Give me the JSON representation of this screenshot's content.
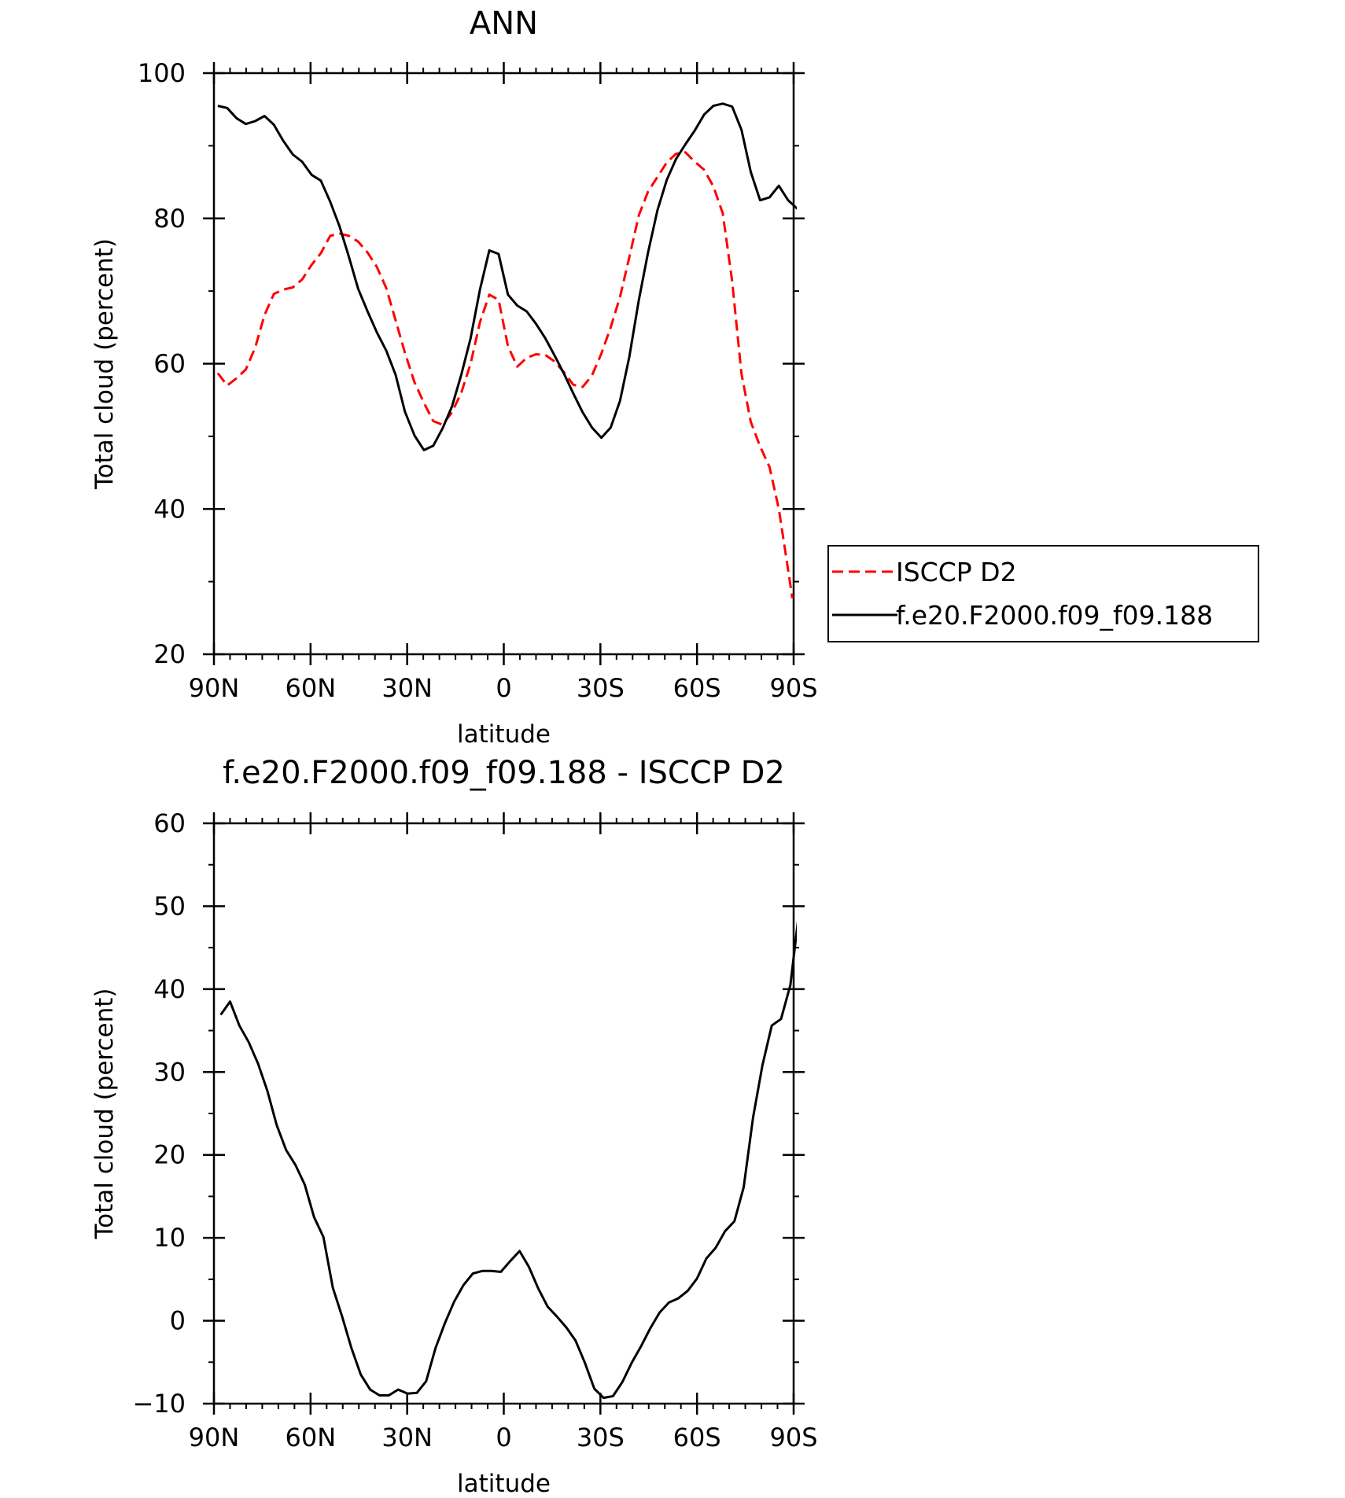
{
  "chart_data": [
    {
      "type": "line",
      "title": "ANN",
      "xlabel": "latitude",
      "ylabel": "Total cloud (percent)",
      "xlim": [
        90,
        -90
      ],
      "ylim": [
        20,
        100
      ],
      "x_ticks": [
        {
          "value": 90,
          "label": "90N"
        },
        {
          "value": 60,
          "label": "60N"
        },
        {
          "value": 30,
          "label": "30N"
        },
        {
          "value": 0,
          "label": "0"
        },
        {
          "value": -30,
          "label": "30S"
        },
        {
          "value": -60,
          "label": "60S"
        },
        {
          "value": -90,
          "label": "90S"
        }
      ],
      "y_ticks": [
        {
          "value": 20,
          "label": "20"
        },
        {
          "value": 40,
          "label": "40"
        },
        {
          "value": 60,
          "label": "60"
        },
        {
          "value": 80,
          "label": "80"
        },
        {
          "value": 100,
          "label": "100"
        }
      ],
      "legend_position": "outside-right",
      "series": [
        {
          "name": "ISCCP D2",
          "color": "#ff0000",
          "style": "dashed",
          "points": [
            [
              88.8,
              58.7
            ],
            [
              85.9,
              57.0
            ],
            [
              83.0,
              58.0
            ],
            [
              80.1,
              59.2
            ],
            [
              77.2,
              62.2
            ],
            [
              74.3,
              66.7
            ],
            [
              71.4,
              69.6
            ],
            [
              68.5,
              70.2
            ],
            [
              65.5,
              70.5
            ],
            [
              62.6,
              71.6
            ],
            [
              59.7,
              73.6
            ],
            [
              56.8,
              75.2
            ],
            [
              53.9,
              77.6
            ],
            [
              51.0,
              77.9
            ],
            [
              48.1,
              77.6
            ],
            [
              45.2,
              76.8
            ],
            [
              42.3,
              75.3
            ],
            [
              39.4,
              73.3
            ],
            [
              36.5,
              70.4
            ],
            [
              33.6,
              66.0
            ],
            [
              30.7,
              61.5
            ],
            [
              27.7,
              57.4
            ],
            [
              24.8,
              54.6
            ],
            [
              21.9,
              52.1
            ],
            [
              19.0,
              51.6
            ],
            [
              16.1,
              53.3
            ],
            [
              13.2,
              56.0
            ],
            [
              10.3,
              60.0
            ],
            [
              7.4,
              65.7
            ],
            [
              4.5,
              69.5
            ],
            [
              1.6,
              68.8
            ],
            [
              -1.3,
              62.4
            ],
            [
              -4.2,
              59.6
            ],
            [
              -7.1,
              60.8
            ],
            [
              -10.0,
              61.3
            ],
            [
              -12.9,
              61.2
            ],
            [
              -15.8,
              60.3
            ],
            [
              -18.7,
              58.8
            ],
            [
              -21.6,
              57.1
            ],
            [
              -24.5,
              56.8
            ],
            [
              -27.4,
              58.4
            ],
            [
              -30.3,
              61.4
            ],
            [
              -33.2,
              65.0
            ],
            [
              -36.1,
              69.2
            ],
            [
              -39.0,
              74.7
            ],
            [
              -41.9,
              80.4
            ],
            [
              -44.8,
              83.7
            ],
            [
              -47.7,
              85.7
            ],
            [
              -50.6,
              87.7
            ],
            [
              -53.5,
              88.9
            ],
            [
              -56.4,
              89.1
            ],
            [
              -59.3,
              87.8
            ],
            [
              -62.2,
              86.7
            ],
            [
              -65.1,
              84.4
            ],
            [
              -68.0,
              80.7
            ],
            [
              -70.9,
              71.4
            ],
            [
              -73.8,
              58.6
            ],
            [
              -76.7,
              52.0
            ],
            [
              -79.6,
              48.6
            ],
            [
              -82.5,
              45.8
            ],
            [
              -85.4,
              40.0
            ],
            [
              -88.3,
              31.6
            ],
            [
              -89.6,
              27.7
            ]
          ]
        },
        {
          "name": "f.e20.F2000.f09_f09.188",
          "color": "#000000",
          "style": "solid",
          "points": [
            [
              88.8,
              95.5
            ],
            [
              85.9,
              95.2
            ],
            [
              83.0,
              93.8
            ],
            [
              80.1,
              93.0
            ],
            [
              77.2,
              93.4
            ],
            [
              74.3,
              94.1
            ],
            [
              71.4,
              92.9
            ],
            [
              68.5,
              90.7
            ],
            [
              65.5,
              88.8
            ],
            [
              62.6,
              87.8
            ],
            [
              59.7,
              86.0
            ],
            [
              56.8,
              85.2
            ],
            [
              53.9,
              82.3
            ],
            [
              51.0,
              78.9
            ],
            [
              48.1,
              74.7
            ],
            [
              45.2,
              70.3
            ],
            [
              42.3,
              67.2
            ],
            [
              39.4,
              64.3
            ],
            [
              36.5,
              61.8
            ],
            [
              33.6,
              58.5
            ],
            [
              30.7,
              53.4
            ],
            [
              27.7,
              50.1
            ],
            [
              24.8,
              48.1
            ],
            [
              21.9,
              48.7
            ],
            [
              19.0,
              51.1
            ],
            [
              16.1,
              54.1
            ],
            [
              13.2,
              58.5
            ],
            [
              10.3,
              63.5
            ],
            [
              7.4,
              70.2
            ],
            [
              4.5,
              75.6
            ],
            [
              1.6,
              75.1
            ],
            [
              -1.3,
              69.5
            ],
            [
              -4.2,
              68.0
            ],
            [
              -7.1,
              67.2
            ],
            [
              -10.0,
              65.5
            ],
            [
              -12.9,
              63.5
            ],
            [
              -15.8,
              61.1
            ],
            [
              -18.7,
              58.6
            ],
            [
              -21.6,
              55.9
            ],
            [
              -24.5,
              53.3
            ],
            [
              -27.4,
              51.2
            ],
            [
              -30.3,
              49.8
            ],
            [
              -33.2,
              51.2
            ],
            [
              -36.1,
              54.9
            ],
            [
              -39.0,
              61.0
            ],
            [
              -41.9,
              68.7
            ],
            [
              -44.8,
              75.3
            ],
            [
              -47.7,
              81.1
            ],
            [
              -50.6,
              85.3
            ],
            [
              -53.5,
              88.2
            ],
            [
              -56.4,
              90.2
            ],
            [
              -59.3,
              92.1
            ],
            [
              -62.2,
              94.3
            ],
            [
              -65.1,
              95.5
            ],
            [
              -68.0,
              95.8
            ],
            [
              -70.9,
              95.4
            ],
            [
              -73.8,
              92.2
            ],
            [
              -76.7,
              86.4
            ],
            [
              -79.6,
              82.5
            ],
            [
              -82.5,
              82.9
            ],
            [
              -85.4,
              84.5
            ],
            [
              -88.3,
              82.5
            ],
            [
              -91.2,
              81.3
            ],
            [
              -94.1,
              82.3
            ],
            [
              -96.5,
              85.7
            ]
          ]
        }
      ]
    },
    {
      "type": "line",
      "title": "f.e20.F2000.f09_f09.188 - ISCCP D2",
      "xlabel": "latitude",
      "ylabel": "Total cloud (percent)",
      "xlim": [
        90,
        -90
      ],
      "ylim": [
        -10,
        60
      ],
      "x_ticks": [
        {
          "value": 90,
          "label": "90N"
        },
        {
          "value": 60,
          "label": "60N"
        },
        {
          "value": 30,
          "label": "30N"
        },
        {
          "value": 0,
          "label": "0"
        },
        {
          "value": -30,
          "label": "30S"
        },
        {
          "value": -60,
          "label": "60S"
        },
        {
          "value": -90,
          "label": "90S"
        }
      ],
      "y_ticks": [
        {
          "value": -10,
          "label": "−10"
        },
        {
          "value": 0,
          "label": "0"
        },
        {
          "value": 10,
          "label": "10"
        },
        {
          "value": 20,
          "label": "20"
        },
        {
          "value": 30,
          "label": "30"
        },
        {
          "value": 40,
          "label": "40"
        },
        {
          "value": 50,
          "label": "50"
        },
        {
          "value": 60,
          "label": "60"
        }
      ],
      "series": [
        {
          "color": "#000000",
          "style": "solid",
          "points": [
            [
              87.9,
              36.9
            ],
            [
              85.0,
              38.5
            ],
            [
              82.1,
              35.6
            ],
            [
              79.2,
              33.6
            ],
            [
              76.3,
              31.0
            ],
            [
              73.4,
              27.7
            ],
            [
              70.5,
              23.6
            ],
            [
              67.6,
              20.6
            ],
            [
              64.7,
              18.8
            ],
            [
              61.8,
              16.4
            ],
            [
              58.9,
              12.5
            ],
            [
              56.0,
              10.1
            ],
            [
              53.1,
              4.0
            ],
            [
              50.2,
              0.5
            ],
            [
              47.3,
              -3.3
            ],
            [
              44.4,
              -6.5
            ],
            [
              41.5,
              -8.3
            ],
            [
              38.6,
              -9.0
            ],
            [
              35.7,
              -9.0
            ],
            [
              32.8,
              -8.3
            ],
            [
              29.9,
              -8.8
            ],
            [
              27.0,
              -8.7
            ],
            [
              24.1,
              -7.3
            ],
            [
              21.2,
              -3.3
            ],
            [
              18.3,
              -0.3
            ],
            [
              15.4,
              2.3
            ],
            [
              12.5,
              4.3
            ],
            [
              9.6,
              5.7
            ],
            [
              6.7,
              6.0
            ],
            [
              3.8,
              6.0
            ],
            [
              0.9,
              5.9
            ],
            [
              -2.0,
              7.2
            ],
            [
              -4.9,
              8.4
            ],
            [
              -7.8,
              6.5
            ],
            [
              -10.7,
              3.9
            ],
            [
              -13.6,
              1.7
            ],
            [
              -16.5,
              0.5
            ],
            [
              -19.4,
              -0.8
            ],
            [
              -22.3,
              -2.4
            ],
            [
              -25.2,
              -5.1
            ],
            [
              -28.1,
              -8.2
            ],
            [
              -31.0,
              -9.3
            ],
            [
              -33.9,
              -9.1
            ],
            [
              -36.8,
              -7.4
            ],
            [
              -39.7,
              -5.1
            ],
            [
              -42.6,
              -3.1
            ],
            [
              -45.5,
              -0.9
            ],
            [
              -48.4,
              1.0
            ],
            [
              -51.3,
              2.2
            ],
            [
              -54.2,
              2.7
            ],
            [
              -57.1,
              3.6
            ],
            [
              -60.0,
              5.1
            ],
            [
              -62.9,
              7.5
            ],
            [
              -65.8,
              8.8
            ],
            [
              -68.7,
              10.8
            ],
            [
              -71.6,
              12.0
            ],
            [
              -74.5,
              16.1
            ],
            [
              -77.4,
              24.5
            ],
            [
              -80.3,
              30.8
            ],
            [
              -83.2,
              35.6
            ],
            [
              -86.1,
              36.4
            ],
            [
              -89.0,
              40.5
            ],
            [
              -91.9,
              50.1
            ],
            [
              -94.8,
              57.8
            ]
          ]
        }
      ]
    }
  ]
}
